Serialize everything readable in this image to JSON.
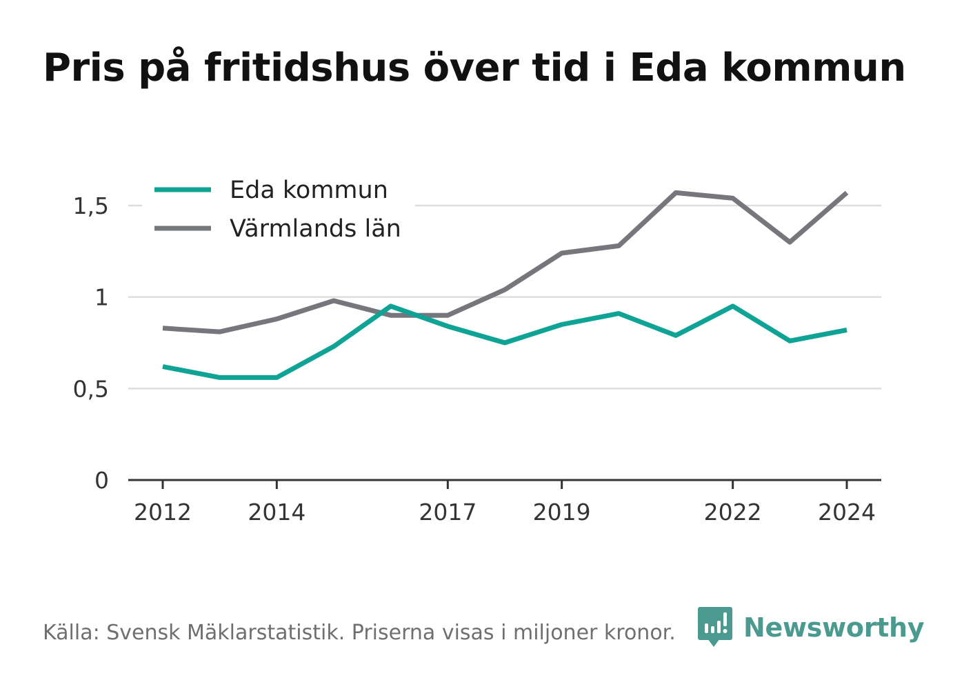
{
  "colors": {
    "eda": "#0fa396",
    "varmland": "#76777c",
    "grid": "#dedede",
    "axis": "#333333",
    "brand": "#4a9a8f"
  },
  "brand": {
    "name": "Newsworthy",
    "icon": "newsworthy-logo-icon"
  },
  "source_note": "Källa: Svensk Mäklarstatistik. Priserna visas i miljoner kronor.",
  "chart_data": {
    "type": "line",
    "title": "Pris på fritidshus över tid i Eda kommun",
    "xlabel": "",
    "ylabel": "",
    "x": [
      2012,
      2013,
      2014,
      2015,
      2016,
      2017,
      2018,
      2019,
      2020,
      2021,
      2022,
      2023,
      2024
    ],
    "x_tick_values": [
      2012,
      2014,
      2017,
      2019,
      2022,
      2024
    ],
    "x_tick_labels": [
      "2012",
      "2014",
      "2017",
      "2019",
      "2022",
      "2024"
    ],
    "y_tick_values": [
      0,
      0.5,
      1,
      1.5
    ],
    "y_tick_labels": [
      "0",
      "0,5",
      "1",
      "1,5"
    ],
    "ylim": [
      0,
      1.5
    ],
    "grid": true,
    "legend_position": "top-left",
    "series": [
      {
        "name": "Eda kommun",
        "color": "#0fa396",
        "values": [
          0.62,
          0.56,
          0.56,
          0.73,
          0.95,
          0.84,
          0.75,
          0.85,
          0.91,
          0.79,
          0.95,
          0.76,
          0.82
        ]
      },
      {
        "name": "Värmlands län",
        "color": "#76777c",
        "values": [
          0.83,
          0.81,
          0.88,
          0.98,
          0.9,
          0.9,
          1.04,
          1.24,
          1.28,
          1.57,
          1.54,
          1.3,
          1.57
        ]
      }
    ]
  }
}
